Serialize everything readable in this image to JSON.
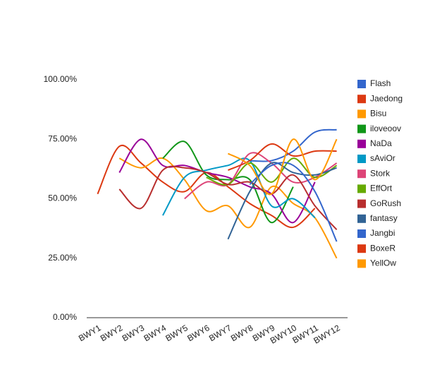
{
  "chart_data": {
    "type": "line",
    "categories": [
      "BWY1",
      "BWY2",
      "BWY3",
      "BWY4",
      "BWY5",
      "BWY6",
      "BWY7",
      "BWY8",
      "BWY9",
      "BWY10",
      "BWY11",
      "BWY12"
    ],
    "ylim": [
      0,
      100
    ],
    "yticks": [
      {
        "value": 0,
        "label": "0.00%"
      },
      {
        "value": 25,
        "label": "25.00%"
      },
      {
        "value": 50,
        "label": "50.00%"
      },
      {
        "value": 75,
        "label": "75.00%"
      },
      {
        "value": 100,
        "label": "100.00%"
      }
    ],
    "series": [
      {
        "name": "Flash",
        "color": "#3366cc",
        "values": [
          null,
          null,
          null,
          null,
          null,
          null,
          null,
          66,
          66,
          70,
          78,
          79
        ]
      },
      {
        "name": "Jaedong",
        "color": "#dc3912",
        "values": [
          52,
          72,
          65,
          57,
          53,
          61,
          55,
          48,
          43,
          38,
          46,
          null
        ]
      },
      {
        "name": "Bisu",
        "color": "#ff9900",
        "values": [
          null,
          67,
          63,
          67,
          58,
          45,
          47,
          38,
          55,
          48,
          42,
          25
        ]
      },
      {
        "name": "iloveoov",
        "color": "#109618",
        "values": [
          null,
          null,
          null,
          67,
          74,
          60,
          58,
          58,
          40,
          55,
          null,
          null
        ]
      },
      {
        "name": "NaDa",
        "color": "#990099",
        "values": [
          null,
          61,
          75,
          64,
          64,
          61,
          59,
          55,
          52,
          40,
          57,
          null
        ]
      },
      {
        "name": "sAviOr",
        "color": "#0099c6",
        "values": [
          null,
          null,
          null,
          43,
          59,
          62,
          64,
          66,
          47,
          50,
          42,
          null
        ]
      },
      {
        "name": "Stork",
        "color": "#dd4477",
        "values": [
          null,
          null,
          null,
          null,
          50,
          57,
          56,
          69,
          65,
          57,
          59,
          65
        ]
      },
      {
        "name": "EffOrt",
        "color": "#66aa00",
        "values": [
          null,
          null,
          null,
          null,
          null,
          59,
          56,
          65,
          57,
          67,
          59,
          64
        ]
      },
      {
        "name": "GoRush",
        "color": "#b82e2e",
        "values": [
          null,
          54,
          46,
          62,
          63,
          61,
          56,
          57,
          52,
          60,
          47,
          37
        ]
      },
      {
        "name": "fantasy",
        "color": "#316395",
        "values": [
          null,
          null,
          null,
          null,
          null,
          null,
          33,
          53,
          65,
          61,
          60,
          63
        ]
      },
      {
        "name": "Jangbi",
        "color": "#3366cc",
        "values": [
          null,
          null,
          null,
          null,
          null,
          null,
          null,
          56,
          64,
          64,
          53,
          32
        ]
      },
      {
        "name": "BoxeR",
        "color": "#dc3912",
        "values": [
          null,
          null,
          null,
          null,
          null,
          null,
          62,
          66,
          73,
          68,
          70,
          70
        ]
      },
      {
        "name": "YellOw",
        "color": "#ff9900",
        "values": [
          null,
          null,
          null,
          null,
          null,
          null,
          69,
          64,
          52,
          75,
          58,
          75
        ]
      }
    ]
  }
}
